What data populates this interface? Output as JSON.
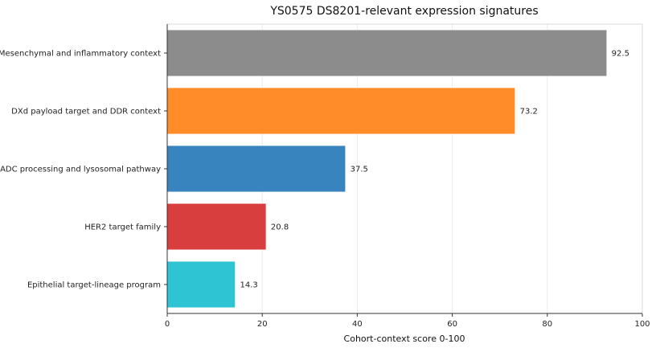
{
  "chart_data": {
    "type": "bar",
    "orientation": "horizontal",
    "title": "YS0575 DS8201-relevant expression signatures",
    "xlabel": "Cohort-context score 0-100",
    "ylabel": "",
    "xlim": [
      0,
      100
    ],
    "xticks": [
      0,
      20,
      40,
      60,
      80,
      100
    ],
    "grid": true,
    "categories": [
      "Mesenchymal and inflammatory context",
      "DXd payload target and DDR context",
      "ADC processing and lysosomal pathway",
      "HER2 target family",
      "Epithelial target-lineage program"
    ],
    "values": [
      92.5,
      73.2,
      37.5,
      20.8,
      14.3
    ],
    "value_labels": [
      "92.5",
      "73.2",
      "37.5",
      "20.8",
      "14.3"
    ],
    "colors": [
      "#8c8c8c",
      "#ff8c28",
      "#3784bf",
      "#d93e3e",
      "#2fc4d4"
    ]
  }
}
